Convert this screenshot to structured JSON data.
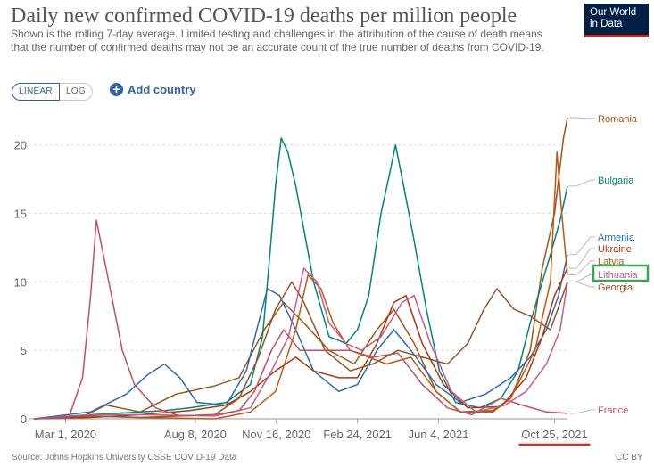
{
  "header": {
    "title": "Daily new confirmed COVID-19 deaths per million people",
    "subtitle": "Shown is the rolling 7-day average. Limited testing and challenges in the attribution of the cause of death means that the number of confirmed deaths may not be an accurate count of the true number of deaths from COVID-19.",
    "logo_line1": "Our World",
    "logo_line2": "in Data"
  },
  "controls": {
    "linear_label": "LINEAR",
    "log_label": "LOG",
    "add_country_label": "Add country"
  },
  "footer": {
    "source": "Source: Johns Hopkins University CSSE COVID-19 Data",
    "license": "CC BY"
  },
  "colors": {
    "accent": "#3360a9",
    "logo_bg": "#002147",
    "logo_underline": "#ce261e",
    "highlight_box": "#3aa655",
    "underline_marker": "#d42b2b"
  },
  "chart_data": {
    "type": "line",
    "title": "Daily new confirmed COVID-19 deaths per million people",
    "xlabel": "",
    "ylabel": "",
    "ylim": [
      0,
      22
    ],
    "yticks": [
      0,
      5,
      10,
      15,
      20
    ],
    "x_ticks": [
      "Mar 1, 2020",
      "Aug 8, 2020",
      "Nov 16, 2020",
      "Feb 24, 2021",
      "Jun 4, 2021",
      "Oct 25, 2021"
    ],
    "grid": true,
    "legend": "right",
    "highlighted_series": "Lithuania",
    "underlined_tick": "Oct 25, 2021",
    "series": [
      {
        "name": "Romania",
        "color": "#a2560f",
        "points": [
          [
            "2020-01-22",
            0
          ],
          [
            "2020-03-20",
            0.1
          ],
          [
            "2020-04-20",
            1.0
          ],
          [
            "2020-06-01",
            0.5
          ],
          [
            "2020-07-15",
            1.8
          ],
          [
            "2020-09-01",
            2.4
          ],
          [
            "2020-10-01",
            3.0
          ],
          [
            "2020-11-01",
            6.5
          ],
          [
            "2020-11-25",
            8.5
          ],
          [
            "2020-12-20",
            7.0
          ],
          [
            "2021-01-20",
            5.0
          ],
          [
            "2021-02-20",
            4.0
          ],
          [
            "2021-03-20",
            6.5
          ],
          [
            "2021-04-10",
            8.0
          ],
          [
            "2021-05-05",
            5.5
          ],
          [
            "2021-06-01",
            2.0
          ],
          [
            "2021-07-01",
            0.5
          ],
          [
            "2021-08-10",
            0.6
          ],
          [
            "2021-09-01",
            1.5
          ],
          [
            "2021-09-25",
            5.0
          ],
          [
            "2021-10-10",
            11
          ],
          [
            "2021-10-25",
            15
          ],
          [
            "2021-11-05",
            20.5
          ],
          [
            "2021-11-10",
            22
          ]
        ]
      },
      {
        "name": "Bulgaria",
        "color": "#00847e",
        "points": [
          [
            "2020-01-22",
            0
          ],
          [
            "2020-04-01",
            0.3
          ],
          [
            "2020-07-01",
            0.6
          ],
          [
            "2020-08-01",
            0.8
          ],
          [
            "2020-09-15",
            1.2
          ],
          [
            "2020-10-15",
            2.5
          ],
          [
            "2020-10-30",
            6
          ],
          [
            "2020-11-08",
            12
          ],
          [
            "2020-11-15",
            17
          ],
          [
            "2020-11-22",
            20.5
          ],
          [
            "2020-11-30",
            19.5
          ],
          [
            "2020-12-10",
            17
          ],
          [
            "2021-01-01",
            10
          ],
          [
            "2021-01-20",
            6
          ],
          [
            "2021-02-10",
            5.5
          ],
          [
            "2021-02-24",
            6.5
          ],
          [
            "2021-03-10",
            9
          ],
          [
            "2021-03-25",
            15
          ],
          [
            "2021-04-05",
            18
          ],
          [
            "2021-04-12",
            20
          ],
          [
            "2021-04-22",
            17
          ],
          [
            "2021-05-05",
            13
          ],
          [
            "2021-05-20",
            8
          ],
          [
            "2021-06-05",
            3.5
          ],
          [
            "2021-06-25",
            1.2
          ],
          [
            "2021-07-25",
            0.8
          ],
          [
            "2021-08-20",
            1.5
          ],
          [
            "2021-09-10",
            3.5
          ],
          [
            "2021-09-25",
            7
          ],
          [
            "2021-10-10",
            10
          ],
          [
            "2021-10-20",
            12
          ],
          [
            "2021-11-01",
            14.5
          ],
          [
            "2021-11-10",
            17
          ]
        ]
      },
      {
        "name": "Armenia",
        "color": "#286bbb",
        "points": [
          [
            "2020-01-22",
            0
          ],
          [
            "2020-04-01",
            0.5
          ],
          [
            "2020-05-15",
            1.8
          ],
          [
            "2020-06-10",
            3.2
          ],
          [
            "2020-07-01",
            4.0
          ],
          [
            "2020-07-20",
            3.0
          ],
          [
            "2020-08-10",
            1.2
          ],
          [
            "2020-09-15",
            1.0
          ],
          [
            "2020-10-10",
            3.5
          ],
          [
            "2020-10-25",
            7
          ],
          [
            "2020-11-05",
            9.5
          ],
          [
            "2020-11-20",
            9.0
          ],
          [
            "2020-12-10",
            6.5
          ],
          [
            "2021-01-01",
            3.5
          ],
          [
            "2021-02-01",
            2.0
          ],
          [
            "2021-02-24",
            2.5
          ],
          [
            "2021-03-20",
            5.0
          ],
          [
            "2021-04-10",
            6.5
          ],
          [
            "2021-05-01",
            5.0
          ],
          [
            "2021-06-01",
            2.5
          ],
          [
            "2021-07-01",
            1.2
          ],
          [
            "2021-08-01",
            1.8
          ],
          [
            "2021-09-01",
            3.0
          ],
          [
            "2021-09-25",
            4.5
          ],
          [
            "2021-10-15",
            6.5
          ],
          [
            "2021-10-30",
            9.0
          ],
          [
            "2021-11-10",
            12
          ]
        ]
      },
      {
        "name": "Ukraine",
        "color": "#b13507",
        "points": [
          [
            "2020-01-22",
            0
          ],
          [
            "2020-04-01",
            0.1
          ],
          [
            "2020-06-01",
            0.3
          ],
          [
            "2020-08-01",
            0.6
          ],
          [
            "2020-09-15",
            1.0
          ],
          [
            "2020-10-15",
            2.0
          ],
          [
            "2020-11-15",
            3.5
          ],
          [
            "2020-12-10",
            4.5
          ],
          [
            "2021-01-01",
            3.5
          ],
          [
            "2021-02-01",
            3.0
          ],
          [
            "2021-02-24",
            3.0
          ],
          [
            "2021-03-20",
            5.5
          ],
          [
            "2021-04-10",
            8.5
          ],
          [
            "2021-04-25",
            9.0
          ],
          [
            "2021-05-15",
            5.5
          ],
          [
            "2021-06-10",
            2.5
          ],
          [
            "2021-07-10",
            0.8
          ],
          [
            "2021-08-20",
            0.9
          ],
          [
            "2021-09-20",
            3.0
          ],
          [
            "2021-10-10",
            6.0
          ],
          [
            "2021-10-25",
            9.0
          ],
          [
            "2021-11-10",
            11
          ]
        ]
      },
      {
        "name": "Latvia",
        "color": "#be5915",
        "points": [
          [
            "2020-01-22",
            0
          ],
          [
            "2020-04-01",
            0.2
          ],
          [
            "2020-06-01",
            0.1
          ],
          [
            "2020-09-01",
            0.0
          ],
          [
            "2020-10-15",
            0.5
          ],
          [
            "2020-11-15",
            2.0
          ],
          [
            "2020-12-10",
            6.5
          ],
          [
            "2020-12-25",
            10.5
          ],
          [
            "2021-01-10",
            9.5
          ],
          [
            "2021-01-25",
            7.0
          ],
          [
            "2021-02-15",
            5.0
          ],
          [
            "2021-03-10",
            4.5
          ],
          [
            "2021-04-01",
            4.0
          ],
          [
            "2021-05-01",
            4.5
          ],
          [
            "2021-06-01",
            2.0
          ],
          [
            "2021-07-01",
            0.5
          ],
          [
            "2021-08-10",
            0.5
          ],
          [
            "2021-09-01",
            1.5
          ],
          [
            "2021-10-01",
            5.0
          ],
          [
            "2021-10-20",
            10
          ],
          [
            "2021-10-28",
            19.5
          ],
          [
            "2021-11-03",
            15
          ],
          [
            "2021-11-10",
            10.5
          ]
        ]
      },
      {
        "name": "Lithuania",
        "color": "#c75b8e",
        "points": [
          [
            "2020-01-22",
            0
          ],
          [
            "2020-04-01",
            0.3
          ],
          [
            "2020-06-01",
            0.3
          ],
          [
            "2020-09-01",
            0.2
          ],
          [
            "2020-10-15",
            0.8
          ],
          [
            "2020-11-10",
            3.5
          ],
          [
            "2020-12-01",
            6.0
          ],
          [
            "2020-12-20",
            11
          ],
          [
            "2021-01-05",
            10
          ],
          [
            "2021-01-20",
            7.0
          ],
          [
            "2021-02-10",
            5.5
          ],
          [
            "2021-03-01",
            5.0
          ],
          [
            "2021-03-25",
            6.0
          ],
          [
            "2021-04-20",
            8.5
          ],
          [
            "2021-05-05",
            9.0
          ],
          [
            "2021-05-25",
            5.5
          ],
          [
            "2021-06-20",
            2.0
          ],
          [
            "2021-07-20",
            0.5
          ],
          [
            "2021-08-25",
            1.0
          ],
          [
            "2021-09-20",
            2.0
          ],
          [
            "2021-10-15",
            4.0
          ],
          [
            "2021-11-01",
            6.5
          ],
          [
            "2021-11-10",
            10
          ]
        ]
      },
      {
        "name": "Georgia",
        "color": "#9a5129",
        "points": [
          [
            "2020-01-22",
            0
          ],
          [
            "2020-04-01",
            0.2
          ],
          [
            "2020-06-01",
            0.1
          ],
          [
            "2020-09-01",
            0.3
          ],
          [
            "2020-10-01",
            1.5
          ],
          [
            "2020-10-25",
            4.5
          ],
          [
            "2020-11-15",
            8.0
          ],
          [
            "2020-12-05",
            10
          ],
          [
            "2020-12-20",
            8.5
          ],
          [
            "2021-01-15",
            5.0
          ],
          [
            "2021-02-15",
            3.5
          ],
          [
            "2021-03-15",
            4.0
          ],
          [
            "2021-04-15",
            5.0
          ],
          [
            "2021-05-15",
            4.5
          ],
          [
            "2021-06-15",
            4.0
          ],
          [
            "2021-07-10",
            5.5
          ],
          [
            "2021-07-30",
            8.0
          ],
          [
            "2021-08-15",
            9.5
          ],
          [
            "2021-09-05",
            8.0
          ],
          [
            "2021-09-25",
            7.5
          ],
          [
            "2021-10-20",
            6.5
          ],
          [
            "2021-11-10",
            10
          ]
        ]
      },
      {
        "name": "France",
        "color": "#c15065",
        "points": [
          [
            "2020-01-22",
            0
          ],
          [
            "2020-03-05",
            0.1
          ],
          [
            "2020-03-22",
            3.0
          ],
          [
            "2020-04-01",
            9.0
          ],
          [
            "2020-04-08",
            14.5
          ],
          [
            "2020-04-20",
            11
          ],
          [
            "2020-05-10",
            5.0
          ],
          [
            "2020-05-25",
            2.5
          ],
          [
            "2020-06-20",
            0.8
          ],
          [
            "2020-07-20",
            0.2
          ],
          [
            "2020-09-01",
            0.3
          ],
          [
            "2020-10-01",
            0.6
          ],
          [
            "2020-10-20",
            2.0
          ],
          [
            "2020-11-10",
            5.0
          ],
          [
            "2020-11-25",
            6.5
          ],
          [
            "2020-12-15",
            5.0
          ],
          [
            "2021-01-15",
            5.0
          ],
          [
            "2021-02-15",
            5.0
          ],
          [
            "2021-03-15",
            4.5
          ],
          [
            "2021-04-15",
            4.8
          ],
          [
            "2021-05-15",
            2.5
          ],
          [
            "2021-06-15",
            0.8
          ],
          [
            "2021-07-15",
            0.3
          ],
          [
            "2021-08-20",
            1.5
          ],
          [
            "2021-09-15",
            1.0
          ],
          [
            "2021-10-15",
            0.5
          ],
          [
            "2021-11-10",
            0.4
          ]
        ]
      }
    ]
  }
}
